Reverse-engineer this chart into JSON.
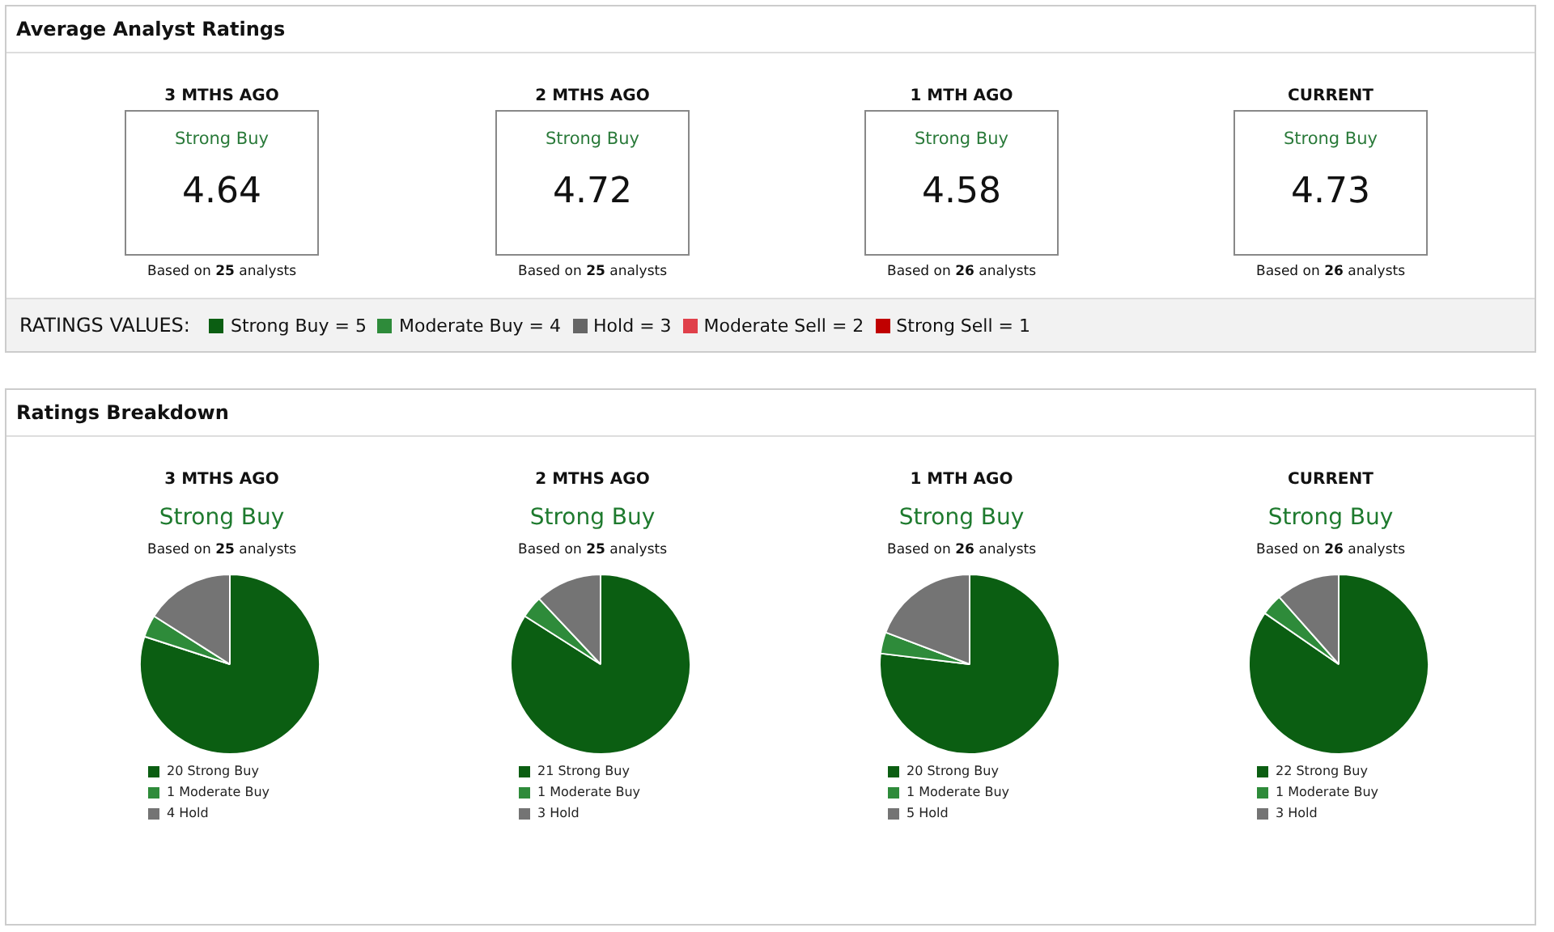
{
  "chart_data": [
    {
      "type": "other",
      "title": "Average Analyst Ratings",
      "categories": [
        "3 MTHS AGO",
        "2 MTHS AGO",
        "1 MTH AGO",
        "CURRENT"
      ],
      "value_labels": [
        "4.64",
        "4.72",
        "4.58",
        "4.73"
      ],
      "annotations": [
        "Strong Buy",
        "Strong Buy",
        "Strong Buy",
        "Strong Buy",
        "Based on 25 analysts",
        "Based on 25 analysts",
        "Based on 26 analysts",
        "Based on 26 analysts"
      ]
    },
    {
      "type": "other",
      "title": "RATINGS VALUES:",
      "categories": [
        "Strong Buy = 5",
        "Moderate Buy = 4",
        "Hold = 3",
        "Moderate Sell = 2",
        "Strong Sell = 1"
      ],
      "colors": [
        "#0b5e12",
        "#2e8b3a",
        "#666666",
        "#e0404a",
        "#c00000"
      ]
    },
    {
      "type": "other",
      "title": "Ratings Breakdown"
    },
    {
      "type": "pie",
      "title": "3 MTHS AGO",
      "subtitle": "Strong Buy",
      "annotations": [
        "Based on 25 analysts"
      ],
      "categories": [
        "20 Strong Buy",
        "1 Moderate Buy",
        "4 Hold"
      ],
      "values": [
        20,
        1,
        4
      ],
      "colors": [
        "#0b5e12",
        "#2e8b3a",
        "#747474"
      ],
      "legend": "bottom"
    },
    {
      "type": "pie",
      "title": "2 MTHS AGO",
      "subtitle": "Strong Buy",
      "annotations": [
        "Based on 25 analysts"
      ],
      "categories": [
        "21 Strong Buy",
        "1 Moderate Buy",
        "3 Hold"
      ],
      "values": [
        21,
        1,
        3
      ],
      "colors": [
        "#0b5e12",
        "#2e8b3a",
        "#747474"
      ],
      "legend": "bottom"
    },
    {
      "type": "pie",
      "title": "1 MTH AGO",
      "subtitle": "Strong Buy",
      "annotations": [
        "Based on 26 analysts"
      ],
      "categories": [
        "20 Strong Buy",
        "1 Moderate Buy",
        "5 Hold"
      ],
      "values": [
        20,
        1,
        5
      ],
      "colors": [
        "#0b5e12",
        "#2e8b3a",
        "#747474"
      ],
      "legend": "bottom"
    },
    {
      "type": "pie",
      "title": "CURRENT",
      "subtitle": "Strong Buy",
      "annotations": [
        "Based on 26 analysts"
      ],
      "categories": [
        "22 Strong Buy",
        "1 Moderate Buy",
        "3 Hold"
      ],
      "values": [
        22,
        1,
        3
      ],
      "colors": [
        "#0b5e12",
        "#2e8b3a",
        "#747474"
      ],
      "legend": "bottom"
    }
  ]
}
